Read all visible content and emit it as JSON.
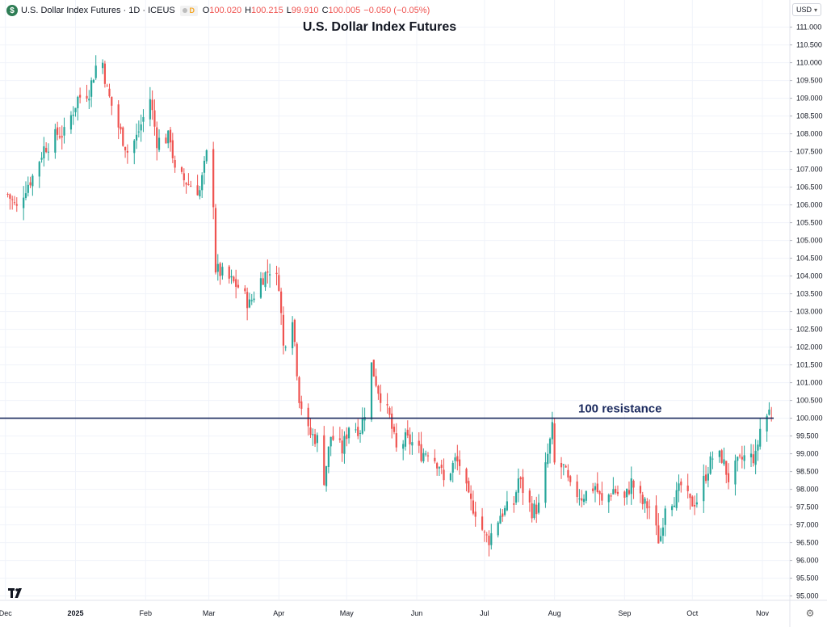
{
  "header": {
    "symbol_badge": "$",
    "symbol_name": "U.S. Dollar Index Futures · 1D · ICEUS",
    "interval_badge": "D",
    "ohlc": [
      {
        "key": "O",
        "value": "100.020"
      },
      {
        "key": "H",
        "value": "100.215"
      },
      {
        "key": "L",
        "value": "99.910"
      },
      {
        "key": "C",
        "value": "100.005"
      }
    ],
    "change": "−0.050 (−0.05%)",
    "currency": "USD"
  },
  "icons": {
    "logo": "tradingview-logo-icon",
    "settings": "gear-icon",
    "currency_dropdown": "chevron-down-icon"
  },
  "colors": {
    "up": "#26a69a",
    "down": "#ef5350",
    "resistance_line": "#1b2a5e",
    "grid": "#f0f3fa"
  },
  "chart_data": {
    "type": "candlestick",
    "title": "U.S. Dollar Index Futures",
    "ylim": [
      94.9,
      111.4
    ],
    "y_ticks": [
      "95.000",
      "95.500",
      "96.000",
      "96.500",
      "97.000",
      "97.500",
      "98.000",
      "98.500",
      "99.000",
      "99.500",
      "100.000",
      "100.500",
      "101.000",
      "101.500",
      "102.000",
      "102.500",
      "103.000",
      "103.500",
      "104.000",
      "104.500",
      "105.000",
      "105.500",
      "106.000",
      "106.500",
      "107.000",
      "107.500",
      "108.000",
      "108.500",
      "109.000",
      "109.500",
      "110.000",
      "110.500",
      "111.000"
    ],
    "x_ticks": [
      {
        "label": "Dec",
        "date": "2024-12-01",
        "bold": false
      },
      {
        "label": "2025",
        "date": "2025-01-01",
        "bold": true
      },
      {
        "label": "Feb",
        "date": "2025-02-01",
        "bold": false
      },
      {
        "label": "Mar",
        "date": "2025-03-01",
        "bold": false
      },
      {
        "label": "Apr",
        "date": "2025-04-01",
        "bold": false
      },
      {
        "label": "May",
        "date": "2025-05-01",
        "bold": false
      },
      {
        "label": "Jun",
        "date": "2025-06-01",
        "bold": false
      },
      {
        "label": "Jul",
        "date": "2025-07-01",
        "bold": false
      },
      {
        "label": "Aug",
        "date": "2025-08-01",
        "bold": false
      },
      {
        "label": "Sep",
        "date": "2025-09-01",
        "bold": false
      },
      {
        "label": "Oct",
        "date": "2025-10-01",
        "bold": false
      },
      {
        "label": "Nov",
        "date": "2025-11-01",
        "bold": false
      }
    ],
    "x_range": [
      "2024-11-30",
      "2025-11-06"
    ],
    "close_path": [
      [
        "2024-12-02",
        106.3
      ],
      [
        "2024-12-06",
        105.9
      ],
      [
        "2024-12-10",
        106.5
      ],
      [
        "2024-12-13",
        106.8
      ],
      [
        "2024-12-18",
        107.6
      ],
      [
        "2024-12-20",
        107.7
      ],
      [
        "2024-12-24",
        108.0
      ],
      [
        "2024-12-27",
        108.0
      ],
      [
        "2025-01-02",
        109.0
      ],
      [
        "2025-01-07",
        109.2
      ],
      [
        "2025-01-10",
        109.9
      ],
      [
        "2025-01-13",
        110.0
      ],
      [
        "2025-01-15",
        109.2
      ],
      [
        "2025-01-20",
        108.2
      ],
      [
        "2025-01-24",
        107.5
      ],
      [
        "2025-01-28",
        107.9
      ],
      [
        "2025-02-03",
        109.0
      ],
      [
        "2025-02-06",
        107.8
      ],
      [
        "2025-02-12",
        107.9
      ],
      [
        "2025-02-14",
        106.9
      ],
      [
        "2025-02-20",
        106.6
      ],
      [
        "2025-02-25",
        106.4
      ],
      [
        "2025-02-28",
        107.4
      ],
      [
        "2025-03-03",
        106.1
      ],
      [
        "2025-03-04",
        104.2
      ],
      [
        "2025-03-10",
        103.9
      ],
      [
        "2025-03-14",
        103.7
      ],
      [
        "2025-03-19",
        103.2
      ],
      [
        "2025-03-24",
        103.9
      ],
      [
        "2025-03-28",
        104.2
      ],
      [
        "2025-04-01",
        103.8
      ],
      [
        "2025-04-03",
        102.0
      ],
      [
        "2025-04-07",
        102.9
      ],
      [
        "2025-04-10",
        100.6
      ],
      [
        "2025-04-14",
        99.6
      ],
      [
        "2025-04-18",
        99.4
      ],
      [
        "2025-04-21",
        98.3
      ],
      [
        "2025-04-24",
        99.5
      ],
      [
        "2025-04-29",
        99.1
      ],
      [
        "2025-05-02",
        99.8
      ],
      [
        "2025-05-07",
        99.7
      ],
      [
        "2025-05-09",
        100.2
      ],
      [
        "2025-05-12",
        101.5
      ],
      [
        "2025-05-15",
        100.8
      ],
      [
        "2025-05-20",
        100.0
      ],
      [
        "2025-05-23",
        99.1
      ],
      [
        "2025-05-27",
        99.4
      ],
      [
        "2025-05-30",
        99.3
      ],
      [
        "2025-06-03",
        99.0
      ],
      [
        "2025-06-06",
        99.1
      ],
      [
        "2025-06-11",
        98.7
      ],
      [
        "2025-06-13",
        98.2
      ],
      [
        "2025-06-18",
        98.8
      ],
      [
        "2025-06-20",
        98.7
      ],
      [
        "2025-06-24",
        97.7
      ],
      [
        "2025-06-27",
        97.4
      ],
      [
        "2025-07-01",
        96.7
      ],
      [
        "2025-07-03",
        96.6
      ],
      [
        "2025-07-08",
        97.3
      ],
      [
        "2025-07-14",
        97.6
      ],
      [
        "2025-07-16",
        98.3
      ],
      [
        "2025-07-22",
        97.4
      ],
      [
        "2025-07-25",
        97.5
      ],
      [
        "2025-07-28",
        98.6
      ],
      [
        "2025-07-31",
        99.7
      ],
      [
        "2025-08-01",
        98.7
      ],
      [
        "2025-08-05",
        98.6
      ],
      [
        "2025-08-08",
        98.0
      ],
      [
        "2025-08-13",
        97.8
      ],
      [
        "2025-08-15",
        97.9
      ],
      [
        "2025-08-19",
        98.1
      ],
      [
        "2025-08-22",
        97.6
      ],
      [
        "2025-08-27",
        98.0
      ],
      [
        "2025-09-01",
        97.7
      ],
      [
        "2025-09-04",
        98.2
      ],
      [
        "2025-09-09",
        97.6
      ],
      [
        "2025-09-12",
        97.5
      ],
      [
        "2025-09-16",
        96.6
      ],
      [
        "2025-09-17",
        96.7
      ],
      [
        "2025-09-19",
        97.6
      ],
      [
        "2025-09-24",
        97.8
      ],
      [
        "2025-09-26",
        98.1
      ],
      [
        "2025-09-30",
        97.6
      ],
      [
        "2025-10-03",
        97.7
      ],
      [
        "2025-10-08",
        98.6
      ],
      [
        "2025-10-10",
        98.9
      ],
      [
        "2025-10-14",
        98.9
      ],
      [
        "2025-10-17",
        98.3
      ],
      [
        "2025-10-21",
        98.7
      ],
      [
        "2025-10-24",
        98.9
      ],
      [
        "2025-10-29",
        98.9
      ],
      [
        "2025-10-31",
        99.7
      ],
      [
        "2025-11-04",
        100.2
      ],
      [
        "2025-11-05",
        100.005
      ]
    ],
    "horizontal_line": {
      "value": 100.0,
      "label": "100 resistance"
    },
    "grid": true
  }
}
